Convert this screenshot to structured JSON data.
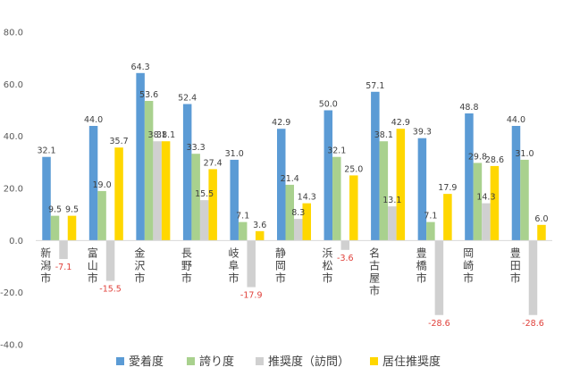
{
  "chart_data": {
    "type": "bar",
    "categories": [
      "新潟市",
      "富山市",
      "金沢市",
      "長野市",
      "岐阜市",
      "静岡市",
      "浜松市",
      "名古屋市",
      "豊橋市",
      "岡崎市",
      "豊田市"
    ],
    "series": [
      {
        "name": "愛着度",
        "color": "#5b9bd5",
        "values": [
          32.1,
          44.0,
          64.3,
          52.4,
          31.0,
          42.9,
          50.0,
          57.1,
          39.3,
          48.8,
          44.0
        ]
      },
      {
        "name": "誇り度",
        "color": "#a9d18e",
        "values": [
          9.5,
          19.0,
          53.6,
          33.3,
          7.1,
          21.4,
          32.1,
          38.1,
          7.1,
          29.8,
          31.0
        ]
      },
      {
        "name": "推奨度（訪問）",
        "color": "#d0d0d0",
        "values": [
          -7.1,
          -15.5,
          38.1,
          15.5,
          -17.9,
          8.3,
          -3.6,
          13.1,
          -28.6,
          14.3,
          -28.6
        ]
      },
      {
        "name": "居住推奨度",
        "color": "#ffd700",
        "values": [
          9.5,
          35.7,
          38.1,
          27.4,
          3.6,
          14.3,
          25.0,
          42.9,
          17.9,
          28.6,
          6.0
        ]
      }
    ],
    "ylim": [
      -40,
      80
    ],
    "yticks": [
      -40,
      -20,
      0,
      20,
      40,
      60,
      80
    ],
    "ytick_labels": [
      "-40.0",
      "-20.0",
      "0.0",
      "20.0",
      "40.0",
      "60.0",
      "80.0"
    ],
    "data_labels": [
      [
        "32.1",
        "44.0",
        "64.3",
        "52.4",
        "31.0",
        "42.9",
        "50.0",
        "57.1",
        "39.3",
        "48.8",
        "44.0"
      ],
      [
        "9.5",
        "19.0",
        "53.6",
        "33.3",
        "7.1",
        "21.4",
        "32.1",
        "38.1",
        "7.1",
        "29.8",
        "31.0"
      ],
      [
        "-7.1",
        "-15.5",
        "38.1",
        "15.5",
        "-17.9",
        "8.3",
        "-3.6",
        "13.1",
        "-28.6",
        "14.3",
        "-28.6"
      ],
      [
        "9.5",
        "35.7",
        "38.1",
        "27.4",
        "3.6",
        "14.3",
        "25.0",
        "42.9",
        "17.9",
        "28.6",
        "6.0"
      ]
    ],
    "negative_label_color": "#e0403a",
    "grid": false,
    "legend_position": "bottom",
    "title": "",
    "xlabel": "",
    "ylabel": ""
  }
}
